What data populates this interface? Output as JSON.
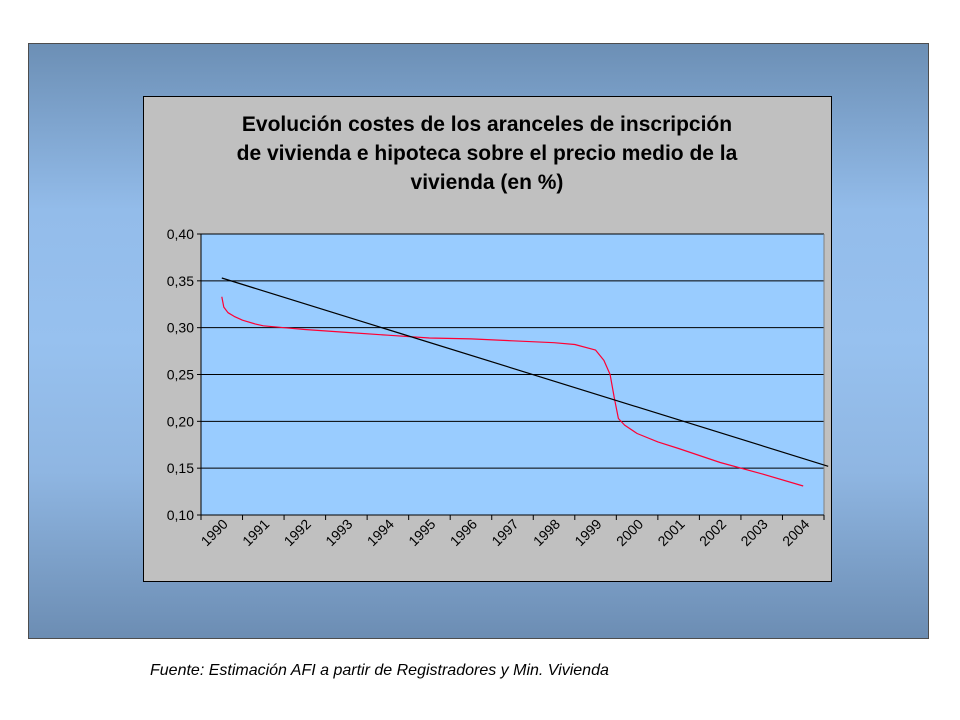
{
  "chart_data": {
    "type": "line",
    "title_lines": [
      "Evolución costes de los aranceles de inscripción",
      "de vivienda e hipoteca sobre el precio medio de la",
      "vivienda (en %)"
    ],
    "categories": [
      "1990",
      "1991",
      "1992",
      "1993",
      "1994",
      "1995",
      "1996",
      "1997",
      "1998",
      "1999",
      "2000",
      "2001",
      "2002",
      "2003",
      "2004"
    ],
    "y_tick_labels": [
      "0,10",
      "0,15",
      "0,20",
      "0,25",
      "0,30",
      "0,35",
      "0,40"
    ],
    "ylim": [
      0.1,
      0.4
    ],
    "grid": "horizontal",
    "legend": "none",
    "series": [
      {
        "color": "#ff0033",
        "points": [
          [
            1990.0,
            0.333
          ],
          [
            1990.05,
            0.322
          ],
          [
            1990.15,
            0.316
          ],
          [
            1990.3,
            0.312
          ],
          [
            1990.5,
            0.308
          ],
          [
            1990.8,
            0.304
          ],
          [
            1991.0,
            0.302
          ],
          [
            1991.5,
            0.3
          ],
          [
            1992.0,
            0.298
          ],
          [
            1993.0,
            0.295
          ],
          [
            1994.0,
            0.292
          ],
          [
            1995.0,
            0.289
          ],
          [
            1996.0,
            0.288
          ],
          [
            1997.0,
            0.286
          ],
          [
            1998.0,
            0.284
          ],
          [
            1998.5,
            0.282
          ],
          [
            1999.0,
            0.276
          ],
          [
            1999.2,
            0.265
          ],
          [
            1999.35,
            0.25
          ],
          [
            1999.45,
            0.225
          ],
          [
            1999.55,
            0.203
          ],
          [
            1999.7,
            0.196
          ],
          [
            2000.0,
            0.187
          ],
          [
            2000.5,
            0.178
          ],
          [
            2001.0,
            0.171
          ],
          [
            2002.0,
            0.156
          ],
          [
            2003.0,
            0.144
          ],
          [
            2004.0,
            0.131
          ]
        ]
      },
      {
        "color": "#000000",
        "points": [
          [
            1990.0,
            0.353
          ],
          [
            2004.6,
            0.152
          ]
        ]
      }
    ]
  },
  "colors": {
    "plot_background": "#99ccff",
    "chart_background": "#c0c0c0",
    "gridline": "#000000",
    "red_series": "#ff0033",
    "black_series": "#000000"
  },
  "footer": {
    "source": "Fuente: Estimación AFI a partir de Registradores y Min. Vivienda"
  }
}
